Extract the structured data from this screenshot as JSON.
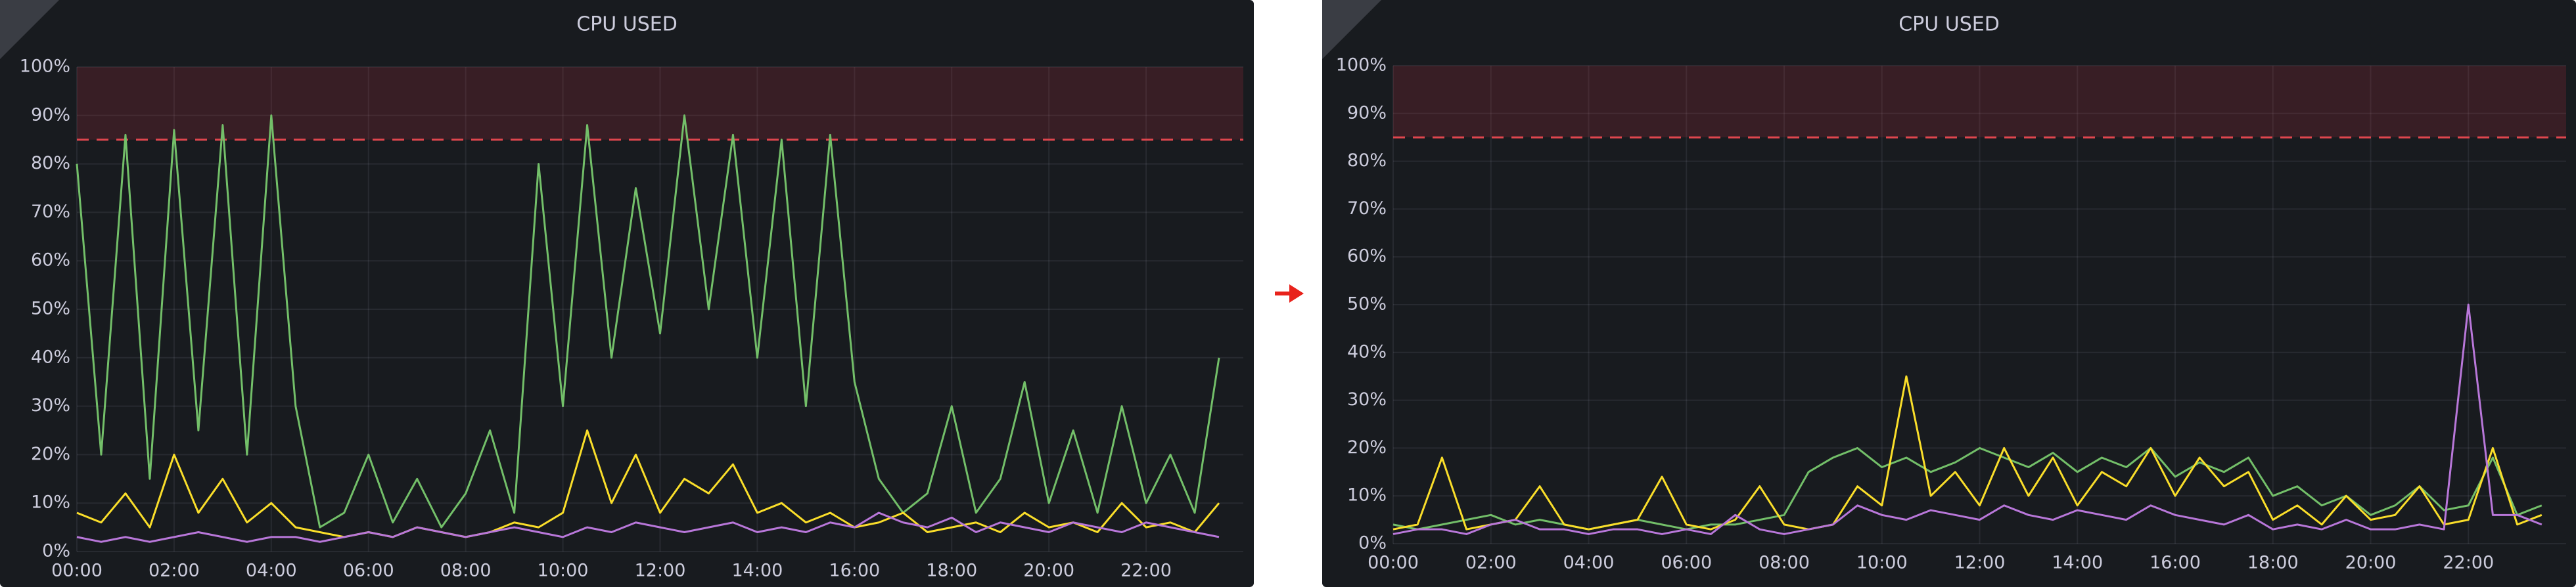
{
  "chart_data": [
    {
      "type": "line",
      "title": "CPU USED",
      "categories": [
        "00:00",
        null,
        null,
        null,
        "02:00",
        null,
        null,
        null,
        "04:00",
        null,
        null,
        null,
        "06:00",
        null,
        null,
        null,
        "08:00",
        null,
        null,
        null,
        "10:00",
        null,
        null,
        null,
        "12:00",
        null,
        null,
        null,
        "14:00",
        null,
        null,
        null,
        "16:00",
        null,
        null,
        null,
        "18:00",
        null,
        null,
        null,
        "20:00",
        null,
        null,
        null,
        "22:00",
        null,
        null,
        null
      ],
      "ylim": [
        0,
        100
      ],
      "yticks": [
        {
          "value": 0,
          "label": "0%"
        },
        {
          "value": 10,
          "label": "10%"
        },
        {
          "value": 20,
          "label": "20%"
        },
        {
          "value": 30,
          "label": "30%"
        },
        {
          "value": 40,
          "label": "40%"
        },
        {
          "value": 50,
          "label": "50%"
        },
        {
          "value": 60,
          "label": "60%"
        },
        {
          "value": 70,
          "label": "70%"
        },
        {
          "value": 80,
          "label": "80%"
        },
        {
          "value": 90,
          "label": "90%"
        },
        {
          "value": 100,
          "label": "100%"
        }
      ],
      "grid": true,
      "threshold": 85,
      "series": [
        {
          "color": "#73bf69",
          "values": [
            80,
            20,
            86,
            15,
            87,
            25,
            88,
            20,
            90,
            30,
            5,
            8,
            20,
            6,
            15,
            5,
            12,
            25,
            8,
            80,
            30,
            88,
            40,
            75,
            45,
            90,
            50,
            86,
            40,
            85,
            30,
            86,
            35,
            15,
            8,
            12,
            30,
            8,
            15,
            35,
            10,
            25,
            8,
            30,
            10,
            20,
            8,
            40
          ]
        },
        {
          "color": "#fade2a",
          "values": [
            8,
            6,
            12,
            5,
            20,
            8,
            15,
            6,
            10,
            5,
            4,
            3,
            4,
            3,
            5,
            4,
            3,
            4,
            6,
            5,
            8,
            25,
            10,
            20,
            8,
            15,
            12,
            18,
            8,
            10,
            6,
            8,
            5,
            6,
            8,
            4,
            5,
            6,
            4,
            8,
            5,
            6,
            4,
            10,
            5,
            6,
            4,
            10
          ]
        },
        {
          "color": "#b877d9",
          "values": [
            3,
            2,
            3,
            2,
            3,
            4,
            3,
            2,
            3,
            3,
            2,
            3,
            4,
            3,
            5,
            4,
            3,
            4,
            5,
            4,
            3,
            5,
            4,
            6,
            5,
            4,
            5,
            6,
            4,
            5,
            4,
            6,
            5,
            8,
            6,
            5,
            7,
            4,
            6,
            5,
            4,
            6,
            5,
            4,
            6,
            5,
            4,
            3
          ]
        }
      ]
    },
    {
      "type": "line",
      "title": "CPU USED",
      "categories": [
        "00:00",
        null,
        null,
        null,
        "02:00",
        null,
        null,
        null,
        "04:00",
        null,
        null,
        null,
        "06:00",
        null,
        null,
        null,
        "08:00",
        null,
        null,
        null,
        "10:00",
        null,
        null,
        null,
        "12:00",
        null,
        null,
        null,
        "14:00",
        null,
        null,
        null,
        "16:00",
        null,
        null,
        null,
        "18:00",
        null,
        null,
        null,
        "20:00",
        null,
        null,
        null,
        "22:00",
        null,
        null,
        null
      ],
      "ylim": [
        0,
        100
      ],
      "yticks": [
        {
          "value": 0,
          "label": "0%"
        },
        {
          "value": 10,
          "label": "10%"
        },
        {
          "value": 20,
          "label": "20%"
        },
        {
          "value": 30,
          "label": "30%"
        },
        {
          "value": 40,
          "label": "40%"
        },
        {
          "value": 50,
          "label": "50%"
        },
        {
          "value": 60,
          "label": "60%"
        },
        {
          "value": 70,
          "label": "70%"
        },
        {
          "value": 80,
          "label": "80%"
        },
        {
          "value": 90,
          "label": "90%"
        },
        {
          "value": 100,
          "label": "100%"
        }
      ],
      "grid": true,
      "threshold": 85,
      "series": [
        {
          "color": "#73bf69",
          "values": [
            4,
            3,
            4,
            5,
            6,
            4,
            5,
            4,
            3,
            4,
            5,
            4,
            3,
            4,
            4,
            5,
            6,
            15,
            18,
            20,
            16,
            18,
            15,
            17,
            20,
            18,
            16,
            19,
            15,
            18,
            16,
            20,
            14,
            17,
            15,
            18,
            10,
            12,
            8,
            10,
            6,
            8,
            12,
            7,
            8,
            18,
            6,
            8
          ]
        },
        {
          "color": "#fade2a",
          "values": [
            3,
            4,
            18,
            3,
            4,
            5,
            12,
            4,
            3,
            4,
            5,
            14,
            4,
            3,
            5,
            12,
            4,
            3,
            4,
            12,
            8,
            35,
            10,
            15,
            8,
            20,
            10,
            18,
            8,
            15,
            12,
            20,
            10,
            18,
            12,
            15,
            5,
            8,
            4,
            10,
            5,
            6,
            12,
            4,
            5,
            20,
            4,
            6
          ]
        },
        {
          "color": "#b877d9",
          "values": [
            2,
            3,
            3,
            2,
            4,
            5,
            3,
            3,
            2,
            3,
            3,
            2,
            3,
            2,
            6,
            3,
            2,
            3,
            4,
            8,
            6,
            5,
            7,
            6,
            5,
            8,
            6,
            5,
            7,
            6,
            5,
            8,
            6,
            5,
            4,
            6,
            3,
            4,
            3,
            5,
            3,
            3,
            4,
            3,
            50,
            6,
            6,
            4
          ]
        }
      ]
    }
  ]
}
